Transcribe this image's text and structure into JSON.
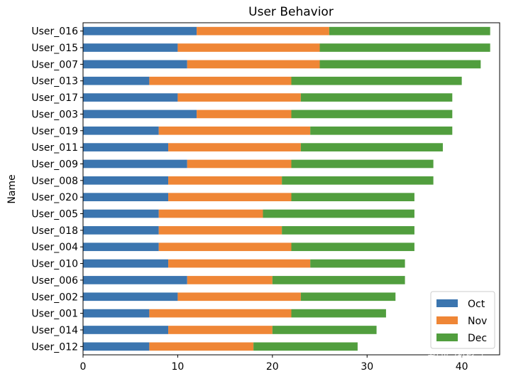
{
  "chart_data": {
    "type": "bar",
    "orientation": "horizontal",
    "stacked": true,
    "title": "User Behavior",
    "xlabel": "",
    "ylabel": "Name",
    "xlim": [
      0,
      44
    ],
    "xticks": [
      0,
      10,
      20,
      30,
      40
    ],
    "grid": false,
    "legend_position": "bottom-right",
    "categories": [
      "User_016",
      "User_015",
      "User_007",
      "User_013",
      "User_017",
      "User_003",
      "User_019",
      "User_011",
      "User_009",
      "User_008",
      "User_020",
      "User_005",
      "User_018",
      "User_004",
      "User_010",
      "User_006",
      "User_002",
      "User_001",
      "User_014",
      "User_012"
    ],
    "series": [
      {
        "name": "Oct",
        "color": "#3b75af",
        "values": [
          12,
          10,
          11,
          7,
          10,
          12,
          8,
          9,
          11,
          9,
          9,
          8,
          8,
          8,
          9,
          11,
          10,
          7,
          9,
          7
        ]
      },
      {
        "name": "Nov",
        "color": "#ef8636",
        "values": [
          14,
          15,
          14,
          15,
          13,
          10,
          16,
          14,
          11,
          12,
          13,
          11,
          13,
          14,
          15,
          9,
          13,
          15,
          11,
          11
        ]
      },
      {
        "name": "Dec",
        "color": "#519e3e",
        "values": [
          17,
          18,
          17,
          18,
          16,
          17,
          15,
          15,
          15,
          16,
          13,
          16,
          14,
          13,
          10,
          14,
          10,
          10,
          11,
          11
        ]
      }
    ]
  },
  "watermark": "知乎 @橘子"
}
